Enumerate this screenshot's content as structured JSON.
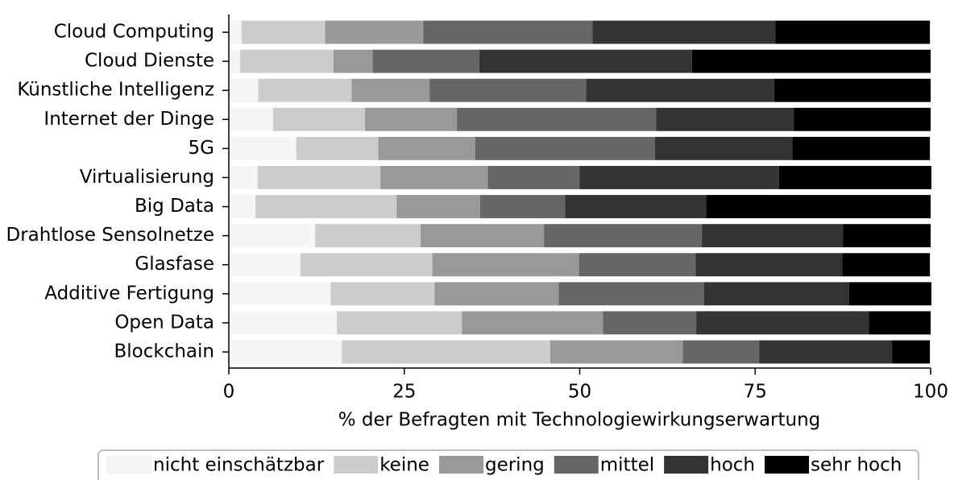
{
  "chart_data": {
    "type": "stacked_bar_horizontal",
    "categories": [
      "Cloud Computing",
      "Cloud Dienste",
      "Künstliche Intelligenz",
      "Internet der Dinge",
      "5G",
      "Virtualisierung",
      "Big Data",
      "Drahtlose Sensolnetze",
      "Glasfase",
      "Additive Fertigung",
      "Open Data",
      "Blockchain"
    ],
    "series": [
      {
        "name": "nicht einschätzbar",
        "color": "#f5f5f5",
        "values": [
          1.8,
          1.6,
          4.2,
          6.3,
          9.6,
          4.1,
          3.8,
          12.3,
          10.2,
          14.5,
          15.4,
          16.1
        ]
      },
      {
        "name": "keine",
        "color": "#cccccc",
        "values": [
          11.9,
          13.3,
          13.3,
          13.1,
          11.7,
          17.5,
          20.1,
          15.0,
          18.8,
          14.8,
          17.8,
          29.7
        ]
      },
      {
        "name": "gering",
        "color": "#999999",
        "values": [
          14.0,
          5.6,
          11.1,
          13.1,
          13.8,
          15.3,
          11.9,
          17.6,
          20.9,
          17.7,
          20.1,
          18.9
        ]
      },
      {
        "name": "mittel",
        "color": "#666666",
        "values": [
          24.1,
          15.2,
          22.3,
          28.4,
          25.6,
          13.1,
          12.1,
          22.5,
          16.6,
          20.7,
          13.3,
          10.9
        ]
      },
      {
        "name": "hoch",
        "color": "#333333",
        "values": [
          26.1,
          30.3,
          26.8,
          19.6,
          19.6,
          28.4,
          20.1,
          20.1,
          20.9,
          20.7,
          24.6,
          18.9
        ]
      },
      {
        "name": "sehr hoch",
        "color": "#000000",
        "values": [
          22.0,
          34.0,
          22.3,
          19.5,
          19.6,
          21.7,
          32.0,
          12.5,
          12.5,
          11.7,
          8.8,
          5.4
        ]
      }
    ],
    "xlabel": "% der Befragten mit Technologiewirkungserwartung",
    "xlim": [
      0,
      100
    ],
    "xticks": [
      0,
      25,
      50,
      75,
      100
    ],
    "legend": "bottom"
  }
}
